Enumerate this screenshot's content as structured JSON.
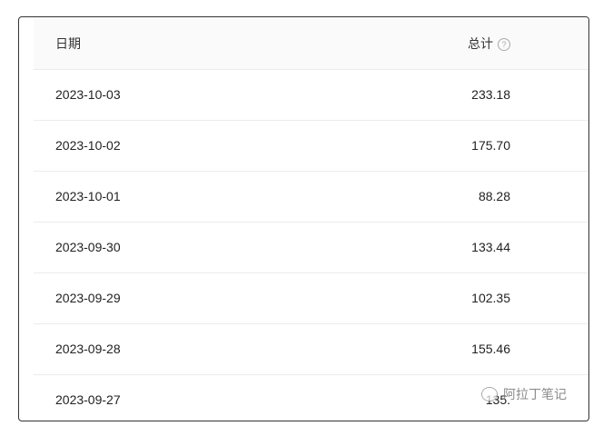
{
  "table": {
    "headers": {
      "date": "日期",
      "total": "总计",
      "help_icon": "question-circle-icon"
    },
    "rows": [
      {
        "date": "2023-10-03",
        "total": "233.18"
      },
      {
        "date": "2023-10-02",
        "total": "175.70"
      },
      {
        "date": "2023-10-01",
        "total": "88.28"
      },
      {
        "date": "2023-09-30",
        "total": "133.44"
      },
      {
        "date": "2023-09-29",
        "total": "102.35"
      },
      {
        "date": "2023-09-28",
        "total": "155.46"
      },
      {
        "date": "2023-09-27",
        "total": "135."
      }
    ]
  },
  "watermark": {
    "text": "阿拉丁笔记"
  }
}
